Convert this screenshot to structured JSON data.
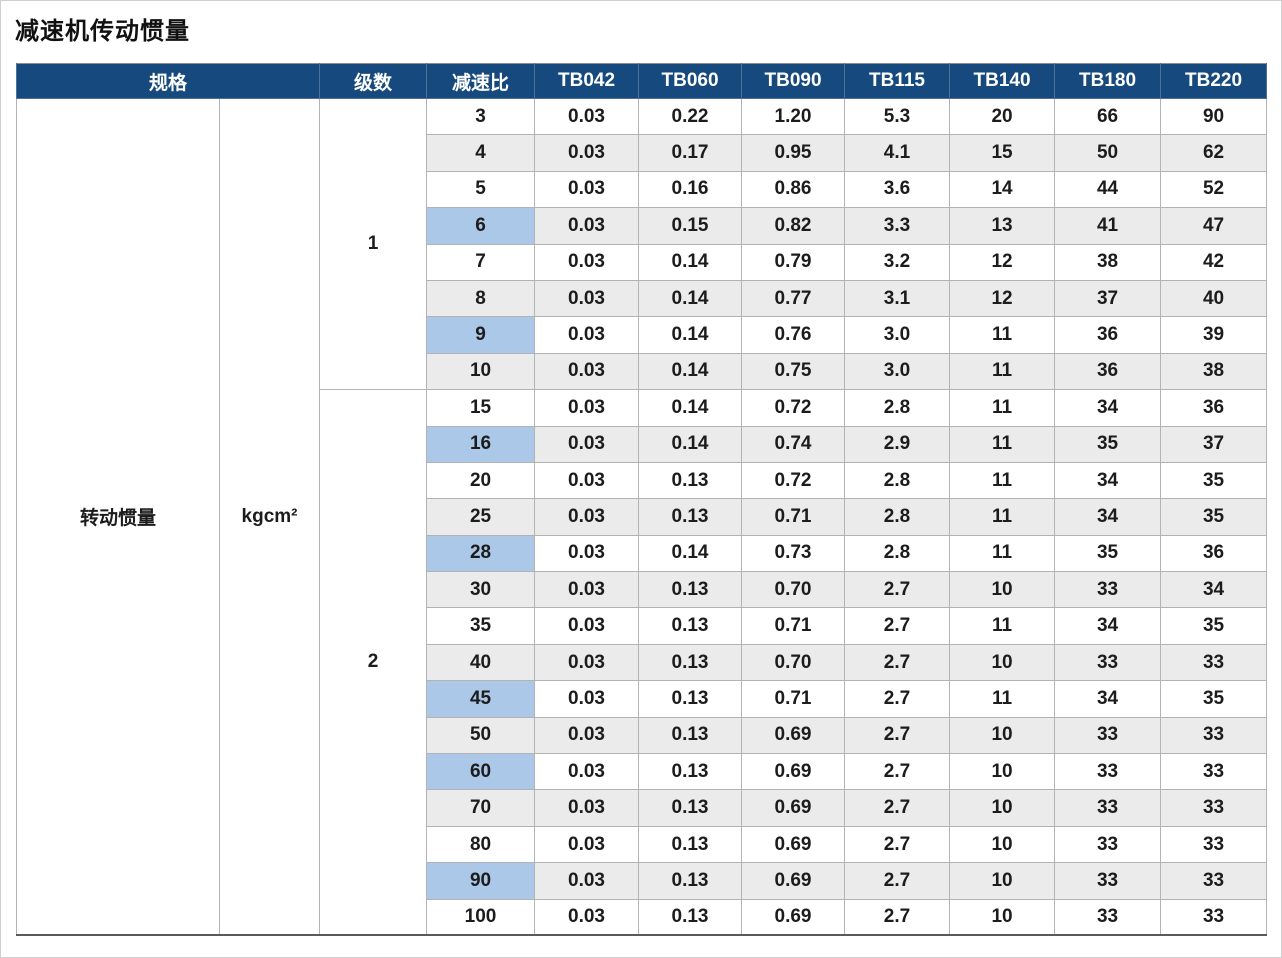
{
  "page": {
    "title": "减速机传动惯量"
  },
  "colors": {
    "page_bg": "#FFFFFF",
    "header_bg": "#16497E",
    "header_text": "#FFFFFF",
    "row_stripe": "#EBEBEB",
    "highlight": "#ABC8E8",
    "grid_line": "#B3B3B3",
    "outer_border": "#8C8C8C",
    "text": "#1C1C1C",
    "title_text": "#111111"
  },
  "table": {
    "headers": [
      "规格",
      "级数",
      "减速比",
      "TB042",
      "TB060",
      "TB090",
      "TB115",
      "TB140",
      "TB180",
      "TB220"
    ],
    "spec_label": "转动惯量",
    "unit_label": "kgcm²",
    "stages": [
      {
        "label": "1",
        "rows": [
          {
            "ratio": "3",
            "highlight": false,
            "values": [
              "0.03",
              "0.22",
              "1.20",
              "5.3",
              "20",
              "66",
              "90"
            ]
          },
          {
            "ratio": "4",
            "highlight": false,
            "values": [
              "0.03",
              "0.17",
              "0.95",
              "4.1",
              "15",
              "50",
              "62"
            ]
          },
          {
            "ratio": "5",
            "highlight": false,
            "values": [
              "0.03",
              "0.16",
              "0.86",
              "3.6",
              "14",
              "44",
              "52"
            ]
          },
          {
            "ratio": "6",
            "highlight": true,
            "values": [
              "0.03",
              "0.15",
              "0.82",
              "3.3",
              "13",
              "41",
              "47"
            ]
          },
          {
            "ratio": "7",
            "highlight": false,
            "values": [
              "0.03",
              "0.14",
              "0.79",
              "3.2",
              "12",
              "38",
              "42"
            ]
          },
          {
            "ratio": "8",
            "highlight": false,
            "values": [
              "0.03",
              "0.14",
              "0.77",
              "3.1",
              "12",
              "37",
              "40"
            ]
          },
          {
            "ratio": "9",
            "highlight": true,
            "values": [
              "0.03",
              "0.14",
              "0.76",
              "3.0",
              "11",
              "36",
              "39"
            ]
          },
          {
            "ratio": "10",
            "highlight": false,
            "values": [
              "0.03",
              "0.14",
              "0.75",
              "3.0",
              "11",
              "36",
              "38"
            ]
          }
        ]
      },
      {
        "label": "2",
        "rows": [
          {
            "ratio": "15",
            "highlight": false,
            "values": [
              "0.03",
              "0.14",
              "0.72",
              "2.8",
              "11",
              "34",
              "36"
            ]
          },
          {
            "ratio": "16",
            "highlight": true,
            "values": [
              "0.03",
              "0.14",
              "0.74",
              "2.9",
              "11",
              "35",
              "37"
            ]
          },
          {
            "ratio": "20",
            "highlight": false,
            "values": [
              "0.03",
              "0.13",
              "0.72",
              "2.8",
              "11",
              "34",
              "35"
            ]
          },
          {
            "ratio": "25",
            "highlight": false,
            "values": [
              "0.03",
              "0.13",
              "0.71",
              "2.8",
              "11",
              "34",
              "35"
            ]
          },
          {
            "ratio": "28",
            "highlight": true,
            "values": [
              "0.03",
              "0.14",
              "0.73",
              "2.8",
              "11",
              "35",
              "36"
            ]
          },
          {
            "ratio": "30",
            "highlight": false,
            "values": [
              "0.03",
              "0.13",
              "0.70",
              "2.7",
              "10",
              "33",
              "34"
            ]
          },
          {
            "ratio": "35",
            "highlight": false,
            "values": [
              "0.03",
              "0.13",
              "0.71",
              "2.7",
              "11",
              "34",
              "35"
            ]
          },
          {
            "ratio": "40",
            "highlight": false,
            "values": [
              "0.03",
              "0.13",
              "0.70",
              "2.7",
              "10",
              "33",
              "33"
            ]
          },
          {
            "ratio": "45",
            "highlight": true,
            "values": [
              "0.03",
              "0.13",
              "0.71",
              "2.7",
              "11",
              "34",
              "35"
            ]
          },
          {
            "ratio": "50",
            "highlight": false,
            "values": [
              "0.03",
              "0.13",
              "0.69",
              "2.7",
              "10",
              "33",
              "33"
            ]
          },
          {
            "ratio": "60",
            "highlight": true,
            "values": [
              "0.03",
              "0.13",
              "0.69",
              "2.7",
              "10",
              "33",
              "33"
            ]
          },
          {
            "ratio": "70",
            "highlight": false,
            "values": [
              "0.03",
              "0.13",
              "0.69",
              "2.7",
              "10",
              "33",
              "33"
            ]
          },
          {
            "ratio": "80",
            "highlight": false,
            "values": [
              "0.03",
              "0.13",
              "0.69",
              "2.7",
              "10",
              "33",
              "33"
            ]
          },
          {
            "ratio": "90",
            "highlight": true,
            "values": [
              "0.03",
              "0.13",
              "0.69",
              "2.7",
              "10",
              "33",
              "33"
            ]
          },
          {
            "ratio": "100",
            "highlight": false,
            "values": [
              "0.03",
              "0.13",
              "0.69",
              "2.7",
              "10",
              "33",
              "33"
            ]
          }
        ]
      }
    ]
  }
}
